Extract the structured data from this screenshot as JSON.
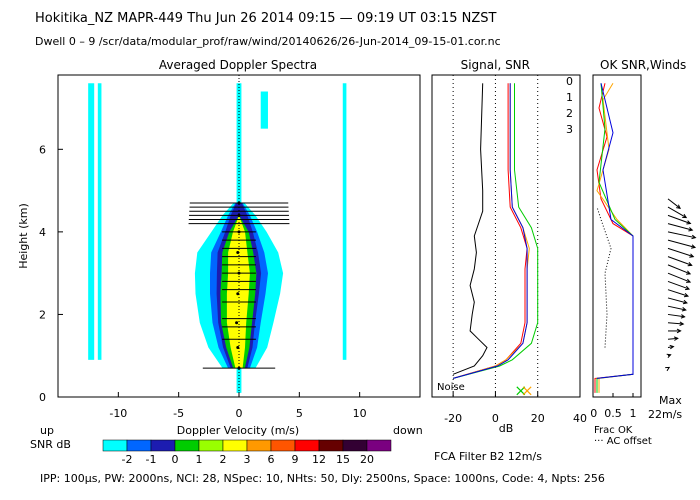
{
  "header": {
    "line1": "Hokitika_NZ  MAPR-449  Thu Jun 26 2014 09:15 — 09:19 UT 03:15 NZST",
    "line2": "Dwell  0 –  9   /scr/data/modular_prof/raw/wind/20140626/26-Jun-2014_09-15-01.cor.nc"
  },
  "footer": "IPP: 100µs,  PW: 2000ns,  NCI: 28,  NSpec: 10, NHts: 50,  Dly: 2500ns,  Space: 1000ns,  Code: 4,  Npts: 256",
  "fca_label": "FCA Filter B2 12m/s",
  "colors": {
    "snr_levels": [
      "#00ffff",
      "#0066ff",
      "#1c1cb0",
      "#00cc00",
      "#99ff00",
      "#ffff00",
      "#ff9900",
      "#ff5500",
      "#ff0000",
      "#660000",
      "#330033",
      "#7a0080"
    ]
  },
  "chart_data": [
    {
      "type": "heatmap",
      "title": "Averaged Doppler Spectra",
      "xlabel": "Doppler Velocity (m/s)",
      "ylabel": "Height (km)",
      "xlim": [
        -15,
        15
      ],
      "ylim": [
        0,
        7.8
      ],
      "x_ticks": [
        -10,
        -5,
        0,
        5,
        10
      ],
      "y_ticks": [
        0,
        2,
        4,
        6
      ],
      "x_left_label": "up",
      "x_right_label": "down",
      "colorbar": {
        "label": "SNR dB",
        "tick_labels": [
          "-2",
          "-1",
          "0",
          "1",
          "2",
          "3",
          "6",
          "9",
          "12",
          "15",
          "20"
        ]
      },
      "profile": [
        {
          "h": 0.7,
          "w_blue": 0.9,
          "w_yel": 0.3,
          "v": 0.0
        },
        {
          "h": 1.2,
          "w_blue": 1.6,
          "w_yel": 0.6,
          "v": -0.1
        },
        {
          "h": 1.8,
          "w_blue": 2.0,
          "w_yel": 0.8,
          "v": -0.2
        },
        {
          "h": 2.5,
          "w_blue": 2.3,
          "w_yel": 0.9,
          "v": -0.1
        },
        {
          "h": 3.0,
          "w_blue": 2.4,
          "w_yel": 0.9,
          "v": 0.0
        },
        {
          "h": 3.5,
          "w_blue": 2.2,
          "w_yel": 0.8,
          "v": -0.1
        },
        {
          "h": 4.0,
          "w_blue": 1.5,
          "w_yel": 0.5,
          "v": 0.0
        },
        {
          "h": 4.4,
          "w_blue": 0.9,
          "w_yel": 0.0,
          "v": 0.0
        },
        {
          "h": 4.7,
          "w_blue": 0.3,
          "w_yel": 0.0,
          "v": 0.0
        }
      ],
      "width_bar_heights": [
        0.7,
        1.4,
        1.7,
        1.9,
        2.3,
        2.6,
        2.8,
        3.0,
        3.2,
        3.4,
        3.6,
        3.8,
        4.0,
        4.2,
        4.3,
        4.4,
        4.5,
        4.6,
        4.7
      ]
    },
    {
      "type": "line",
      "title": "Signal, SNR",
      "xlabel": "dB",
      "xlim": [
        -30,
        40
      ],
      "ylim": [
        0,
        7.8
      ],
      "x_ticks": [
        -20,
        0,
        20,
        40
      ],
      "noise_label": "Noise",
      "series": [
        {
          "color": "#000000",
          "points": [
            [
              -20,
              0.55
            ],
            [
              -10,
              0.75
            ],
            [
              -6,
              1.0
            ],
            [
              -4,
              1.2
            ],
            [
              -8,
              1.4
            ],
            [
              -12,
              1.6
            ],
            [
              -11,
              2.0
            ],
            [
              -10,
              2.3
            ],
            [
              -12,
              2.7
            ],
            [
              -10,
              3.1
            ],
            [
              -9,
              3.5
            ],
            [
              -10,
              3.9
            ],
            [
              -8,
              4.2
            ],
            [
              -6,
              4.5
            ],
            [
              -6,
              5.0
            ],
            [
              -7,
              6.0
            ],
            [
              -6,
              7.6
            ]
          ]
        },
        {
          "color": "#ff0000",
          "points": [
            [
              -20,
              0.45
            ],
            [
              0,
              0.75
            ],
            [
              5,
              0.9
            ],
            [
              12,
              1.3
            ],
            [
              14,
              1.8
            ],
            [
              14,
              2.5
            ],
            [
              14,
              3.1
            ],
            [
              15,
              3.6
            ],
            [
              12,
              4.1
            ],
            [
              7,
              4.6
            ],
            [
              6,
              5.5
            ],
            [
              6,
              7.6
            ]
          ]
        },
        {
          "color": "#ffa500",
          "points": [
            [
              -20,
              0.45
            ],
            [
              0,
              0.75
            ],
            [
              5,
              0.9
            ],
            [
              13,
              1.3
            ],
            [
              15,
              1.8
            ],
            [
              15,
              2.5
            ],
            [
              15,
              3.1
            ],
            [
              16,
              3.6
            ],
            [
              13,
              4.1
            ],
            [
              8,
              4.6
            ],
            [
              7,
              5.5
            ],
            [
              7,
              7.6
            ]
          ]
        },
        {
          "color": "#00cc00",
          "points": [
            [
              -20,
              0.45
            ],
            [
              2,
              0.75
            ],
            [
              8,
              0.9
            ],
            [
              17,
              1.3
            ],
            [
              20,
              1.8
            ],
            [
              20,
              2.5
            ],
            [
              20,
              3.1
            ],
            [
              20,
              3.6
            ],
            [
              17,
              4.1
            ],
            [
              11,
              4.6
            ],
            [
              9,
              5.5
            ],
            [
              9,
              7.6
            ]
          ]
        },
        {
          "color": "#0000dd",
          "points": [
            [
              -20,
              0.45
            ],
            [
              1,
              0.75
            ],
            [
              6,
              0.9
            ],
            [
              13,
              1.3
            ],
            [
              15,
              1.8
            ],
            [
              15,
              2.5
            ],
            [
              15,
              3.1
            ],
            [
              15,
              3.6
            ],
            [
              13,
              4.1
            ],
            [
              8,
              4.6
            ],
            [
              7,
              5.5
            ],
            [
              7,
              7.6
            ]
          ]
        }
      ]
    },
    {
      "type": "line",
      "title": "OK SNR,Winds",
      "xlabel": "Frac OK",
      "footnote": "AC offset",
      "xlim": [
        0,
        1.2
      ],
      "ylim": [
        0,
        7.8
      ],
      "x_ticks": [
        0.5,
        1
      ],
      "x_tick_labels": [
        "0.5",
        "1"
      ],
      "extra_tick_label": "0",
      "legend": [
        {
          "label": "0",
          "color": "#ff0000"
        },
        {
          "label": "1",
          "color": "#ffa500"
        },
        {
          "label": "2",
          "color": "#00cc00"
        },
        {
          "label": "3",
          "color": "#0000dd"
        }
      ],
      "series": [
        {
          "color": "#ff0000",
          "points": [
            [
              0.05,
              0.1
            ],
            [
              0.05,
              0.45
            ],
            [
              1.0,
              0.55
            ],
            [
              1.0,
              3.9
            ],
            [
              0.5,
              4.2
            ],
            [
              0.2,
              4.8
            ],
            [
              0.1,
              5.5
            ],
            [
              0.35,
              6.3
            ],
            [
              0.15,
              7.0
            ],
            [
              0.3,
              7.6
            ]
          ]
        },
        {
          "color": "#ffa500",
          "points": [
            [
              0.15,
              0.1
            ],
            [
              0.15,
              0.45
            ],
            [
              1.0,
              0.55
            ],
            [
              1.0,
              3.9
            ],
            [
              0.6,
              4.3
            ],
            [
              0.1,
              5.0
            ],
            [
              0.4,
              6.0
            ],
            [
              0.25,
              7.2
            ],
            [
              0.5,
              7.6
            ]
          ]
        },
        {
          "color": "#00cc00",
          "points": [
            [
              0.1,
              0.1
            ],
            [
              0.1,
              0.45
            ],
            [
              1.0,
              0.55
            ],
            [
              1.0,
              3.9
            ],
            [
              0.55,
              4.3
            ],
            [
              0.15,
              5.2
            ],
            [
              0.3,
              6.5
            ],
            [
              0.2,
              7.6
            ]
          ]
        },
        {
          "color": "#0000dd",
          "points": [
            [
              0.1,
              0.45
            ],
            [
              1.0,
              0.55
            ],
            [
              1.0,
              3.9
            ],
            [
              0.45,
              4.3
            ],
            [
              0.25,
              5.5
            ],
            [
              0.5,
              6.4
            ],
            [
              0.2,
              7.6
            ]
          ]
        }
      ],
      "dotted": [
        [
          0.3,
          1.2
        ],
        [
          0.35,
          2.0
        ],
        [
          0.3,
          3.0
        ],
        [
          0.45,
          3.6
        ],
        [
          0.2,
          4.3
        ],
        [
          0.1,
          4.6
        ]
      ],
      "winds": {
        "max_label": "Max",
        "max_value": "22m/s",
        "barbs": [
          {
            "h": 0.7,
            "dir": 300,
            "speed": 0.05
          },
          {
            "h": 1.0,
            "dir": 290,
            "speed": 0.1
          },
          {
            "h": 1.2,
            "dir": 280,
            "speed": 0.2
          },
          {
            "h": 1.4,
            "dir": 275,
            "speed": 0.35
          },
          {
            "h": 1.6,
            "dir": 270,
            "speed": 0.45
          },
          {
            "h": 1.8,
            "dir": 265,
            "speed": 0.55
          },
          {
            "h": 2.0,
            "dir": 262,
            "speed": 0.6
          },
          {
            "h": 2.2,
            "dir": 258,
            "speed": 0.65
          },
          {
            "h": 2.4,
            "dir": 255,
            "speed": 0.7
          },
          {
            "h": 2.6,
            "dir": 252,
            "speed": 0.75
          },
          {
            "h": 2.8,
            "dir": 250,
            "speed": 0.8
          },
          {
            "h": 3.0,
            "dir": 248,
            "speed": 0.85
          },
          {
            "h": 3.2,
            "dir": 248,
            "speed": 0.85
          },
          {
            "h": 3.4,
            "dir": 250,
            "speed": 0.9
          },
          {
            "h": 3.6,
            "dir": 252,
            "speed": 0.95
          },
          {
            "h": 3.8,
            "dir": 255,
            "speed": 1.0
          },
          {
            "h": 4.0,
            "dir": 258,
            "speed": 1.0
          },
          {
            "h": 4.2,
            "dir": 255,
            "speed": 0.9
          },
          {
            "h": 4.4,
            "dir": 250,
            "speed": 0.85
          },
          {
            "h": 4.6,
            "dir": 240,
            "speed": 0.75
          },
          {
            "h": 4.8,
            "dir": 232,
            "speed": 0.55
          }
        ]
      }
    }
  ]
}
